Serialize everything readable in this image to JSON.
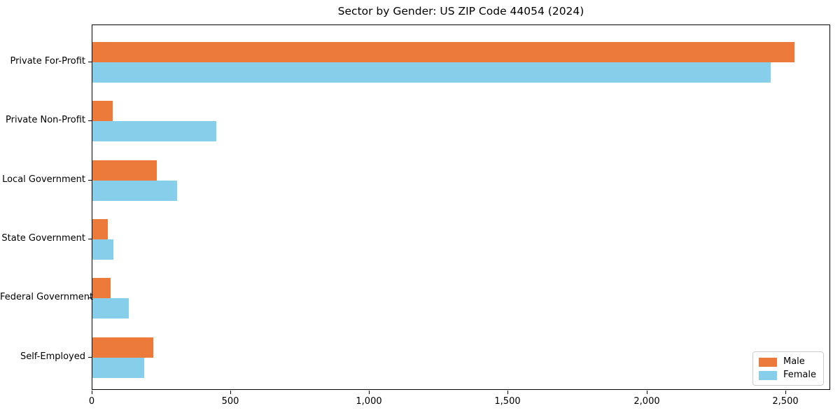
{
  "chart_data": {
    "type": "bar",
    "orientation": "horizontal",
    "title": "Sector by Gender: US ZIP Code 44054 (2024)",
    "categories": [
      "Private For-Profit",
      "Private Non-Profit",
      "Local Government",
      "State Government",
      "Federal Government",
      "Self-Employed"
    ],
    "series": [
      {
        "name": "Male",
        "color": "#EC7A3B",
        "values": [
          2531,
          72,
          233,
          56,
          66,
          219
        ]
      },
      {
        "name": "Female",
        "color": "#87CEEB",
        "values": [
          2445,
          446,
          305,
          76,
          130,
          187
        ]
      }
    ],
    "xlabel": "",
    "ylabel": "",
    "xlim": [
      0,
      2662
    ],
    "x_ticks": [
      0,
      500,
      1000,
      1500,
      2000,
      2500
    ],
    "x_tick_labels": [
      "0",
      "500",
      "1,000",
      "1,500",
      "2,000",
      "2,500"
    ],
    "grid": false,
    "legend": {
      "position": "lower right",
      "entries": [
        "Male",
        "Female"
      ]
    },
    "colors": {
      "axis": "#000000",
      "legend_border": "#cccccc",
      "background": "#ffffff"
    }
  }
}
